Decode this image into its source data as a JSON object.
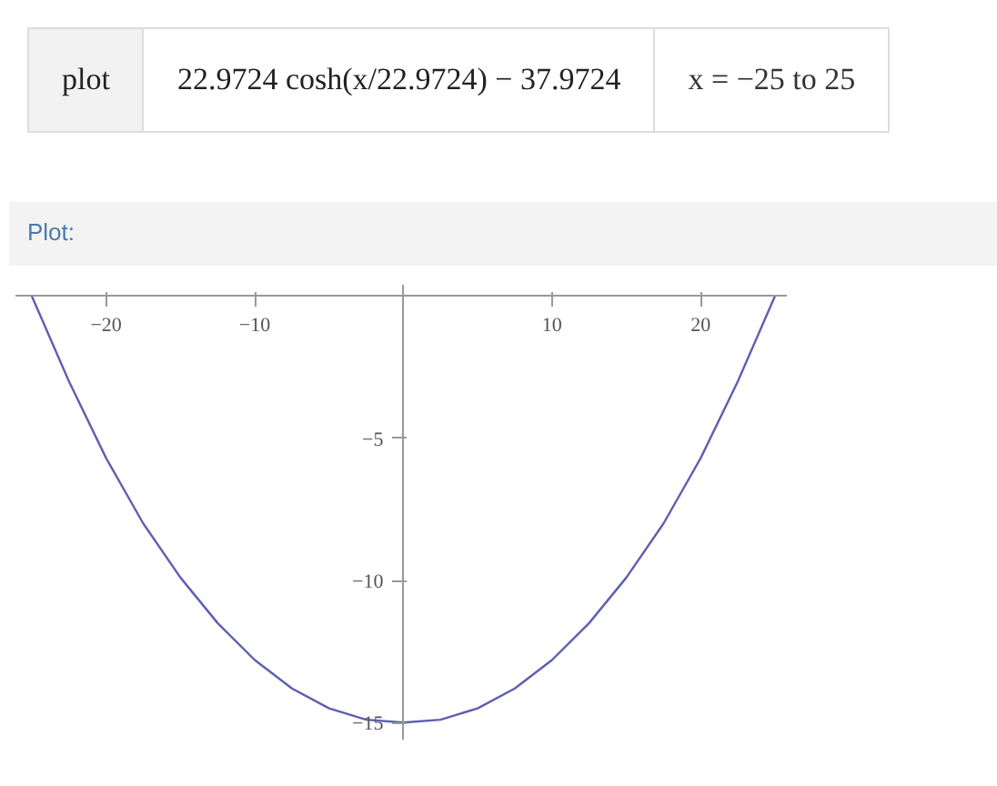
{
  "chart_data": {
    "type": "line",
    "title": "Plot:",
    "annotations": [
      "plot",
      "22.9724 cosh(x/22.9724) − 37.9724",
      "x = −25 to 25"
    ],
    "x": [
      -25,
      -22.5,
      -20,
      -17.5,
      -15,
      -12.5,
      -10,
      -7.5,
      -5,
      -2.5,
      0,
      2.5,
      5,
      7.5,
      10,
      12.5,
      15,
      17.5,
      20,
      22.5,
      25
    ],
    "series": [
      {
        "color": "#5e5fb0",
        "values": [
          0,
          -3.0,
          -5.7,
          -8.0,
          -9.9,
          -11.5,
          -12.8,
          -13.8,
          -14.5,
          -14.9,
          -15,
          -14.9,
          -14.5,
          -13.8,
          -12.8,
          -11.5,
          -9.9,
          -8.0,
          -5.7,
          -3.0,
          0
        ]
      }
    ],
    "xlim": [
      -26.1,
      25.8
    ],
    "ylim": [
      -15.6,
      0.4
    ],
    "xticks": [
      {
        "value": -20,
        "label": "−20"
      },
      {
        "value": -10,
        "label": "−10"
      },
      {
        "value": 10,
        "label": "10"
      },
      {
        "value": 20,
        "label": "20"
      }
    ],
    "yticks": [
      {
        "value": -5,
        "label": "−5"
      },
      {
        "value": -10,
        "label": "−10"
      },
      {
        "value": -15,
        "label": "−15"
      }
    ],
    "grid": false,
    "marker": "none",
    "line_style": "solid"
  }
}
